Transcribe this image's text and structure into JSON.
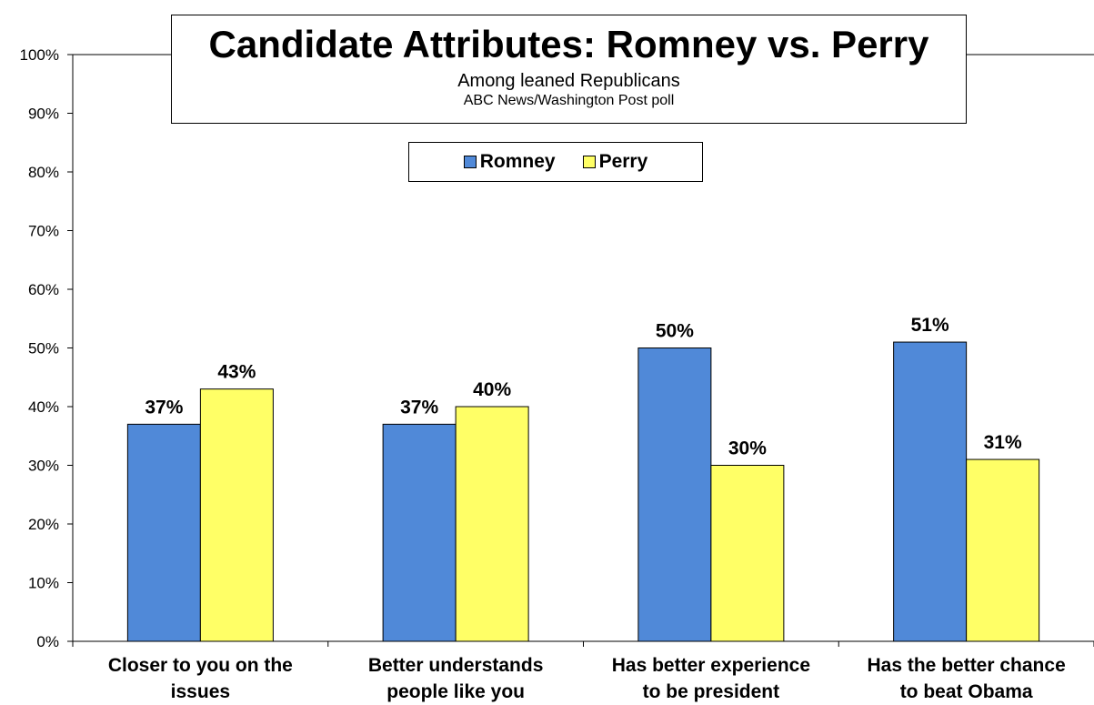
{
  "chart_data": {
    "type": "bar",
    "title": "Candidate Attributes: Romney vs. Perry",
    "subtitle": "Among leaned Republicans",
    "source": "ABC News/Washington  Post poll",
    "categories": [
      [
        "Closer to you on the",
        "issues"
      ],
      [
        "Better understands",
        "people like you"
      ],
      [
        "Has better experience",
        "to be president"
      ],
      [
        "Has the better chance",
        "to beat Obama"
      ]
    ],
    "series": [
      {
        "name": "Romney",
        "color": "#5089d8",
        "values": [
          37,
          37,
          50,
          51
        ],
        "labels": [
          "37%",
          "37%",
          "50%",
          "51%"
        ]
      },
      {
        "name": "Perry",
        "color": "#ffff66",
        "values": [
          43,
          40,
          30,
          31
        ],
        "labels": [
          "43%",
          "40%",
          "30%",
          "31%"
        ]
      }
    ],
    "ylim": [
      0,
      100
    ],
    "yticks": [
      "0%",
      "10%",
      "20%",
      "30%",
      "40%",
      "50%",
      "60%",
      "70%",
      "80%",
      "90%",
      "100%"
    ],
    "grid": false,
    "legend_position": "top-center"
  }
}
